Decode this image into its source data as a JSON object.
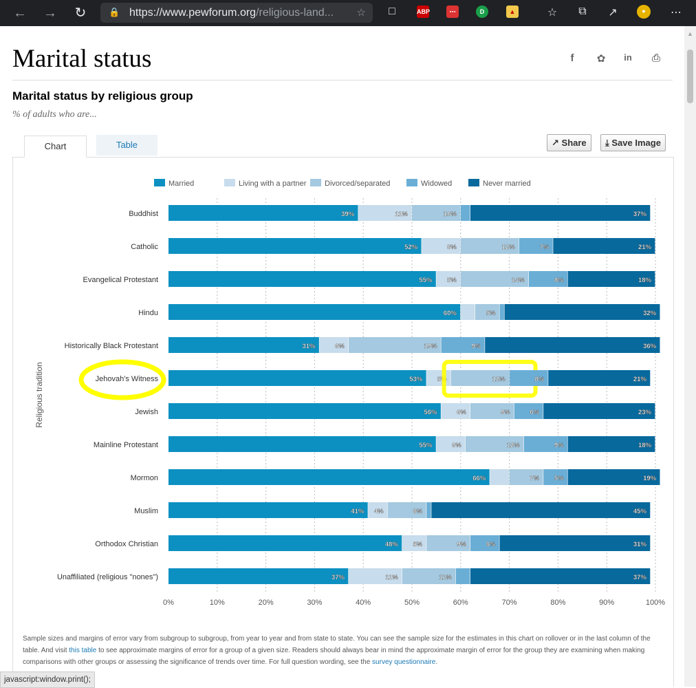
{
  "browser": {
    "url_host": "https://www.pewforum.org",
    "url_path": "/religious-land...",
    "status_text": "javascript:window.print();"
  },
  "page": {
    "title": "Marital status",
    "subtitle": "Marital status by religious group",
    "note_label": "% of adults who are...",
    "tabs": [
      "Chart",
      "Table"
    ],
    "share_label": "Share",
    "save_label": "Save Image",
    "footnote_1": "Sample sizes and margins of error vary from subgroup to subgroup, from year to year and from state to state. You can see the sample size for the estimates in this chart on rollover or in the last column of the table. And visit ",
    "footnote_link_1": "this table",
    "footnote_2": " to see approximate margins of error for a group of a given size. Readers should always bear in mind the approximate margin of error for the group they are examining when making comparisons with other groups or assessing the significance of trends over time. For full question wording, see the ",
    "footnote_link_2": "survey questionnaire",
    "footnote_3": "."
  },
  "colors": {
    "married": "#0c90c1",
    "partner": "#c7dcec",
    "divorced": "#a4c9e0",
    "widowed": "#6aaed6",
    "never": "#08699d",
    "highlight": "#ffff00"
  },
  "chart_data": {
    "type": "bar",
    "orientation": "horizontal",
    "stacked": true,
    "ylabel": "Religious tradition",
    "xlim": [
      0,
      100
    ],
    "x_ticks": [
      "0%",
      "10%",
      "20%",
      "30%",
      "40%",
      "50%",
      "60%",
      "70%",
      "80%",
      "90%",
      "100%"
    ],
    "categories": [
      "Buddhist",
      "Catholic",
      "Evangelical Protestant",
      "Hindu",
      "Historically Black Protestant",
      "Jehovah's Witness",
      "Jewish",
      "Mainline Protestant",
      "Mormon",
      "Muslim",
      "Orthodox Christian",
      "Unaffiliated (religious \"nones\")"
    ],
    "series": [
      {
        "name": "Married",
        "values": [
          39,
          52,
          55,
          60,
          31,
          53,
          56,
          55,
          66,
          41,
          48,
          37
        ]
      },
      {
        "name": "Living with a partner",
        "values": [
          11,
          8,
          5,
          3,
          6,
          5,
          6,
          6,
          4,
          4,
          5,
          11
        ]
      },
      {
        "name": "Divorced/separated",
        "values": [
          10,
          12,
          14,
          5,
          19,
          12,
          9,
          12,
          7,
          8,
          9,
          11
        ]
      },
      {
        "name": "Widowed",
        "values": [
          2,
          7,
          8,
          1,
          9,
          8,
          6,
          9,
          5,
          1,
          6,
          3
        ]
      },
      {
        "name": "Never married",
        "values": [
          37,
          21,
          18,
          32,
          36,
          21,
          23,
          18,
          19,
          45,
          31,
          37
        ]
      }
    ],
    "labels_shown": [
      [
        "39%",
        "11%",
        "10%",
        "",
        "37%"
      ],
      [
        "52%",
        "8%",
        "12%",
        "7%",
        "21%"
      ],
      [
        "55%",
        "5%",
        "14%",
        "8%",
        "18%"
      ],
      [
        "60%",
        "",
        "5%",
        "",
        "32%"
      ],
      [
        "31%",
        "6%",
        "19%",
        "9%",
        "36%"
      ],
      [
        "53%",
        "5%",
        "12%",
        "8%",
        "21%"
      ],
      [
        "56%",
        "6%",
        "9%",
        "6%",
        "23%"
      ],
      [
        "55%",
        "6%",
        "12%",
        "9%",
        "18%"
      ],
      [
        "66%",
        "",
        "7%",
        "5%",
        "19%"
      ],
      [
        "41%",
        "4%",
        "8%",
        "",
        "45%"
      ],
      [
        "48%",
        "5%",
        "9%",
        "6%",
        "31%"
      ],
      [
        "37%",
        "11%",
        "11%",
        "",
        "37%"
      ]
    ],
    "legend_position": "top",
    "grid": true,
    "highlighted": [
      "Jehovah's Witness",
      "Jehovah's Witness / Divorced/separated 12%"
    ]
  }
}
